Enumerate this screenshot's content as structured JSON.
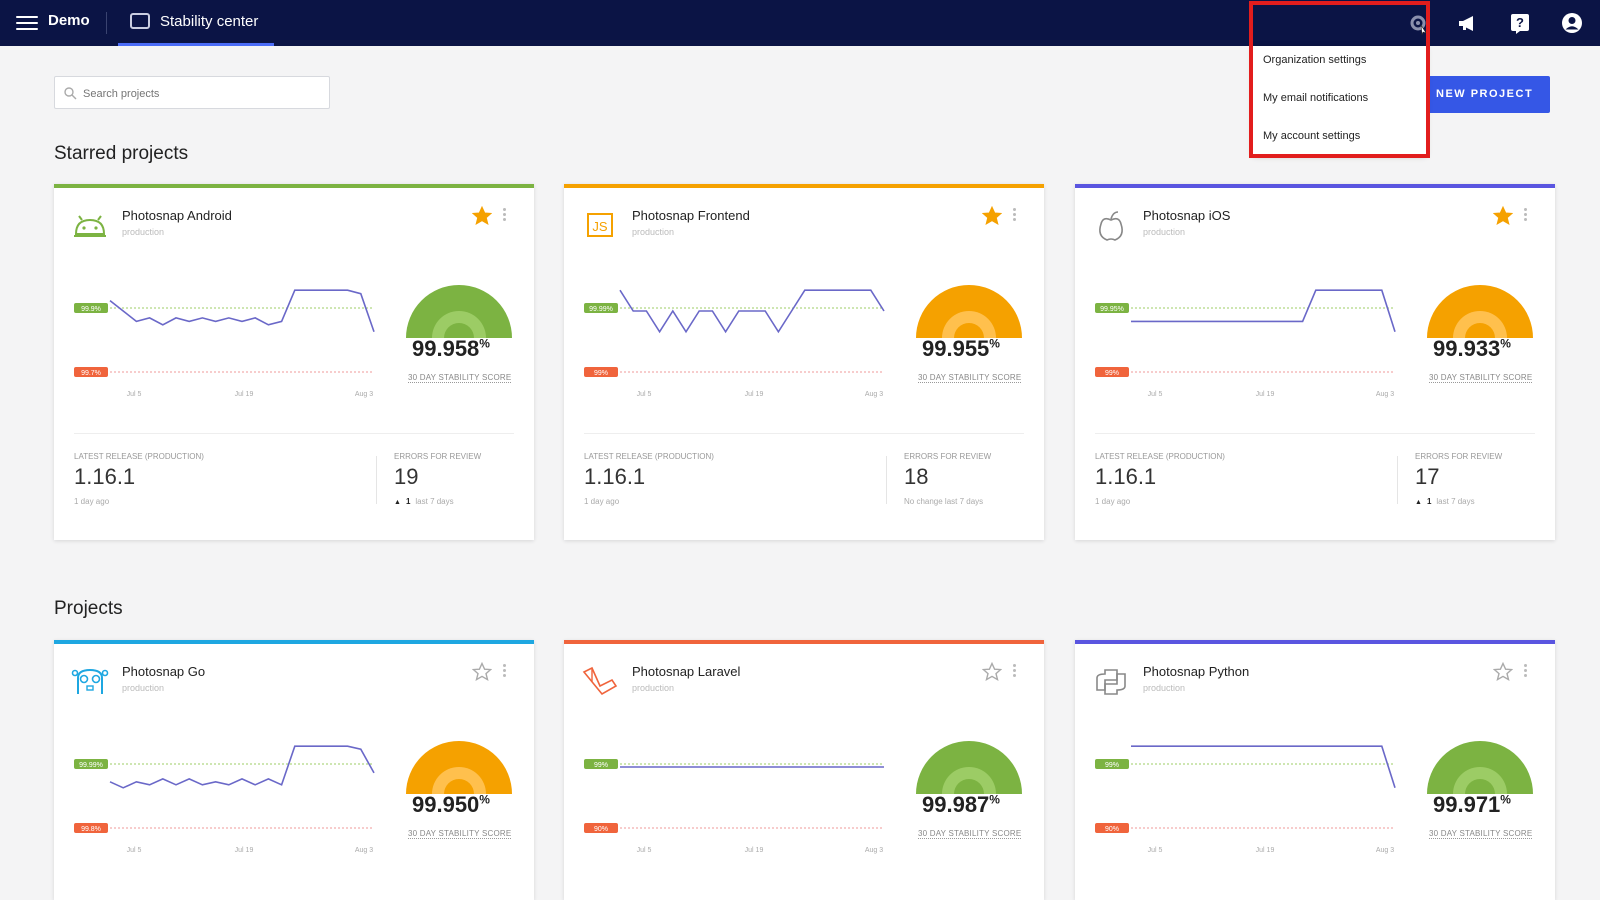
{
  "header": {
    "org": "Demo",
    "nav_label": "Stability center",
    "icons": [
      "settings-icon",
      "announcement-icon",
      "help-icon",
      "user-icon"
    ]
  },
  "settings_menu": [
    "Organization settings",
    "My email notifications",
    "My account settings"
  ],
  "search": {
    "placeholder": "Search projects",
    "value": ""
  },
  "new_project": "NEW PROJECT",
  "starred_title": "Starred projects",
  "projects_title": "Projects",
  "labels": {
    "score": "30 DAY STABILITY SCORE",
    "latest_release": "LATEST RELEASE (PRODUCTION)",
    "errors": "ERRORS FOR REVIEW",
    "x_ticks": [
      "Jul 5",
      "Jul 19",
      "Aug 3"
    ]
  },
  "colors": {
    "nav_bg": "#0b1445",
    "accent": "#3557e6",
    "highlight": "#e21d1d"
  },
  "starred": [
    {
      "name": "Photosnap Android",
      "env": "production",
      "score": "99.958",
      "gauge": "green",
      "bar": "#7cb342",
      "icon": "android-icon",
      "starred": true,
      "target": "99.9%",
      "crit": "99.7%",
      "release": "1.16.1",
      "release_ago": "1 day ago",
      "errors": "19",
      "err_change": "1",
      "err_period": "last 7 days",
      "trend": "up",
      "series": [
        99.89,
        99.86,
        99.83,
        99.84,
        99.82,
        99.84,
        99.83,
        99.84,
        99.83,
        99.84,
        99.83,
        99.84,
        99.82,
        99.83,
        99.92,
        99.92,
        99.92,
        99.92,
        99.92,
        99.91,
        99.8
      ]
    },
    {
      "name": "Photosnap Frontend",
      "env": "production",
      "score": "99.955",
      "gauge": "orange",
      "bar": "#f5a100",
      "icon": "javascript-icon",
      "starred": true,
      "target": "99.99%",
      "crit": "99%",
      "release": "1.16.1",
      "release_ago": "1 day ago",
      "errors": "18",
      "err_change": "",
      "err_period": "No change last 7 days",
      "trend": "none",
      "series": [
        99.99,
        99.985,
        99.985,
        99.98,
        99.985,
        99.98,
        99.985,
        99.985,
        99.98,
        99.985,
        99.985,
        99.985,
        99.98,
        99.985,
        99.99,
        99.99,
        99.99,
        99.99,
        99.99,
        99.99,
        99.985
      ]
    },
    {
      "name": "Photosnap iOS",
      "env": "production",
      "score": "99.933",
      "gauge": "orange",
      "bar": "#5a55e0",
      "icon": "apple-icon",
      "starred": true,
      "target": "99.95%",
      "crit": "99%",
      "release": "1.16.1",
      "release_ago": "1 day ago",
      "errors": "17",
      "err_change": "1",
      "err_period": "last 7 days",
      "trend": "up",
      "series": [
        99.88,
        99.88,
        99.88,
        99.88,
        99.88,
        99.88,
        99.88,
        99.88,
        99.88,
        99.88,
        99.88,
        99.88,
        99.88,
        99.88,
        99.94,
        99.94,
        99.94,
        99.94,
        99.94,
        99.94,
        99.86
      ]
    }
  ],
  "projects": [
    {
      "name": "Photosnap Go",
      "env": "production",
      "score": "99.950",
      "gauge": "orange",
      "bar": "#1ea7e1",
      "icon": "gopher-icon",
      "starred": false,
      "target": "99.99%",
      "crit": "99.8%",
      "series": [
        99.85,
        99.83,
        99.85,
        99.84,
        99.86,
        99.84,
        99.86,
        99.84,
        99.85,
        99.84,
        99.86,
        99.84,
        99.86,
        99.84,
        99.97,
        99.97,
        99.97,
        99.97,
        99.97,
        99.96,
        99.88
      ]
    },
    {
      "name": "Photosnap Laravel",
      "env": "production",
      "score": "99.987",
      "gauge": "green",
      "bar": "#f0643c",
      "icon": "laravel-icon",
      "starred": false,
      "target": "99%",
      "crit": "90%",
      "series": [
        99.99,
        99.99,
        99.99,
        99.99,
        99.99,
        99.99,
        99.99,
        99.99,
        99.99,
        99.99,
        99.99,
        99.99,
        99.99,
        99.99,
        99.99,
        99.99,
        99.99,
        99.99,
        99.99,
        99.99,
        99.99
      ]
    },
    {
      "name": "Photosnap Python",
      "env": "production",
      "score": "99.971",
      "gauge": "green",
      "bar": "#5a55e0",
      "icon": "python-icon",
      "starred": false,
      "target": "99%",
      "crit": "90%",
      "series": [
        99.99,
        99.99,
        99.99,
        99.99,
        99.99,
        99.99,
        99.99,
        99.99,
        99.99,
        99.99,
        99.99,
        99.99,
        99.99,
        99.99,
        99.99,
        99.99,
        99.99,
        99.99,
        99.99,
        99.99,
        99.985
      ]
    }
  ]
}
